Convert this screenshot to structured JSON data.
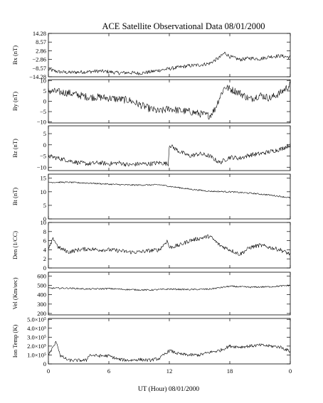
{
  "chart_data": {
    "type": "line",
    "title": "ACE Satellite Observational Data   08/01/2000",
    "xlabel": "UT (Hour)  08/01/2000",
    "x_ticks": [
      "0",
      "6",
      "12",
      "18",
      "0"
    ],
    "xlim": [
      0,
      24
    ],
    "panels": [
      {
        "id": "bx",
        "ylabel": "Bx (nT)",
        "ylim": [
          -14.28,
          14.28
        ],
        "y_ticks": [
          14.28,
          8.57,
          2.86,
          -2.86,
          -8.57,
          -14.28
        ],
        "y_tick_labels": [
          "14.28",
          "8.57",
          "2.86",
          "−2.86",
          "−8.57",
          "−14.28"
        ],
        "x": [
          0,
          1,
          2,
          3,
          4,
          5,
          6,
          7,
          8,
          9,
          10,
          11,
          12,
          13,
          14,
          15,
          16,
          17,
          17.5,
          18,
          19,
          20,
          21,
          22,
          23,
          24
        ],
        "y": [
          -9.5,
          -11.0,
          -11.5,
          -11.2,
          -11.0,
          -10.5,
          -11.0,
          -11.8,
          -11.5,
          -12.0,
          -11.2,
          -10.0,
          -9.0,
          -8.0,
          -7.0,
          -6.5,
          -5.5,
          -1.5,
          1.5,
          -1.0,
          -3.0,
          -2.0,
          -2.5,
          -1.0,
          -0.5,
          -1.5
        ],
        "noise": 1.2
      },
      {
        "id": "by",
        "ylabel": "By (nT)",
        "ylim": [
          -10.5,
          10.5
        ],
        "y_ticks": [
          10,
          5,
          0,
          -5,
          -10
        ],
        "y_tick_labels": [
          "10",
          "5",
          "0",
          "−5",
          "−10"
        ],
        "x": [
          0,
          1,
          2,
          3,
          4,
          5,
          6,
          7,
          8,
          9,
          9.5,
          10,
          11,
          12,
          13,
          14,
          15,
          16,
          16.5,
          17,
          17.5,
          18,
          19,
          20,
          21,
          22,
          23,
          24
        ],
        "y": [
          5.0,
          4.5,
          4.0,
          3.0,
          2.0,
          2.0,
          1.5,
          1.0,
          0.5,
          -1.5,
          -2.5,
          -3.5,
          -5.0,
          -3.5,
          -4.5,
          -5.0,
          -6.0,
          -7.0,
          -4.0,
          2.0,
          7.0,
          6.0,
          4.0,
          1.0,
          3.0,
          1.5,
          4.0,
          8.0
        ],
        "noise": 1.8
      },
      {
        "id": "bz",
        "ylabel": "Bz (nT)",
        "ylim": [
          -11.5,
          8.5
        ],
        "y_ticks": [
          5,
          0,
          -5,
          -10
        ],
        "y_tick_labels": [
          "5",
          "0",
          "−5",
          "−10"
        ],
        "x": [
          0,
          1,
          2,
          3,
          4,
          5,
          6,
          7,
          8,
          9,
          10,
          11,
          11.9,
          12.0,
          13,
          14,
          15,
          16,
          17,
          18,
          19,
          20,
          21,
          22,
          23,
          24
        ],
        "y": [
          -5.0,
          -6.0,
          -7.0,
          -8.0,
          -8.5,
          -8.0,
          -8.5,
          -8.0,
          -9.0,
          -8.5,
          -8.5,
          -8.0,
          -8.5,
          0.0,
          -3.0,
          -5.0,
          -4.0,
          -5.0,
          -8.0,
          -5.5,
          -6.0,
          -4.5,
          -4.0,
          -3.0,
          -2.0,
          0.0
        ],
        "noise": 1.0
      },
      {
        "id": "bt",
        "ylabel": "Bt (nT)",
        "ylim": [
          0,
          16.5
        ],
        "y_ticks": [
          15,
          10,
          5,
          0
        ],
        "y_tick_labels": [
          "15",
          "10",
          "5",
          "0"
        ],
        "x": [
          0,
          2,
          4,
          6,
          8,
          10,
          11,
          12,
          14,
          16,
          18,
          20,
          22,
          24
        ],
        "y": [
          13.5,
          13.5,
          13.2,
          12.8,
          12.5,
          12.5,
          12.6,
          12.0,
          11.0,
          10.2,
          10.0,
          9.5,
          8.8,
          7.8
        ],
        "noise": 0.25
      },
      {
        "id": "den",
        "ylabel": "Den (1/CC)",
        "ylim": [
          0,
          10
        ],
        "y_ticks": [
          10,
          8,
          6,
          4,
          2,
          0
        ],
        "y_tick_labels": [
          "10",
          "8",
          "6",
          "4",
          "2",
          "0"
        ],
        "x": [
          0,
          0.5,
          1,
          2,
          3,
          4,
          5,
          6,
          7,
          8,
          9,
          10,
          11,
          11.8,
          12,
          13,
          14,
          15,
          16,
          17,
          18,
          19,
          20,
          21,
          22,
          23,
          24
        ],
        "y": [
          4.0,
          6.5,
          4.5,
          3.5,
          4.0,
          4.2,
          4.0,
          4.0,
          3.8,
          3.5,
          3.5,
          3.8,
          4.0,
          6.0,
          4.5,
          5.0,
          6.0,
          6.5,
          7.0,
          5.0,
          4.0,
          3.0,
          4.5,
          5.0,
          4.5,
          4.0,
          3.0
        ],
        "noise": 0.45
      },
      {
        "id": "vel",
        "ylabel": "Vel (Km/sec)",
        "ylim": [
          185,
          640
        ],
        "y_ticks": [
          600,
          500,
          400,
          300,
          200
        ],
        "y_tick_labels": [
          "600",
          "500",
          "400",
          "300",
          "200"
        ],
        "x": [
          0,
          2,
          4,
          6,
          8,
          10,
          12,
          14,
          16,
          18,
          20,
          22,
          24
        ],
        "y": [
          470,
          470,
          460,
          465,
          455,
          450,
          460,
          455,
          460,
          490,
          480,
          485,
          500
        ],
        "noise": 8
      },
      {
        "id": "temp",
        "ylabel": "Ion Temp (K)",
        "ylim": [
          0,
          510000
        ],
        "y_ticks": [
          500000,
          400000,
          300000,
          200000,
          100000,
          0
        ],
        "y_tick_labels": [
          "5.0×10⁵",
          "4.0×10⁵",
          "3.0×10⁵",
          "2.0×10⁵",
          "1.0×10⁵",
          "0"
        ],
        "x": [
          0,
          0.8,
          1.2,
          2,
          3,
          3.8,
          4.0,
          5,
          6,
          7,
          8,
          9,
          10,
          11,
          12,
          13,
          14,
          15,
          16,
          17,
          18,
          19,
          20,
          21,
          22,
          23,
          24
        ],
        "y": [
          100000,
          250000,
          90000,
          40000,
          40000,
          40000,
          100000,
          90000,
          90000,
          50000,
          40000,
          50000,
          40000,
          60000,
          150000,
          110000,
          100000,
          100000,
          130000,
          150000,
          200000,
          190000,
          200000,
          210000,
          200000,
          190000,
          140000
        ],
        "noise": 18000
      }
    ]
  }
}
